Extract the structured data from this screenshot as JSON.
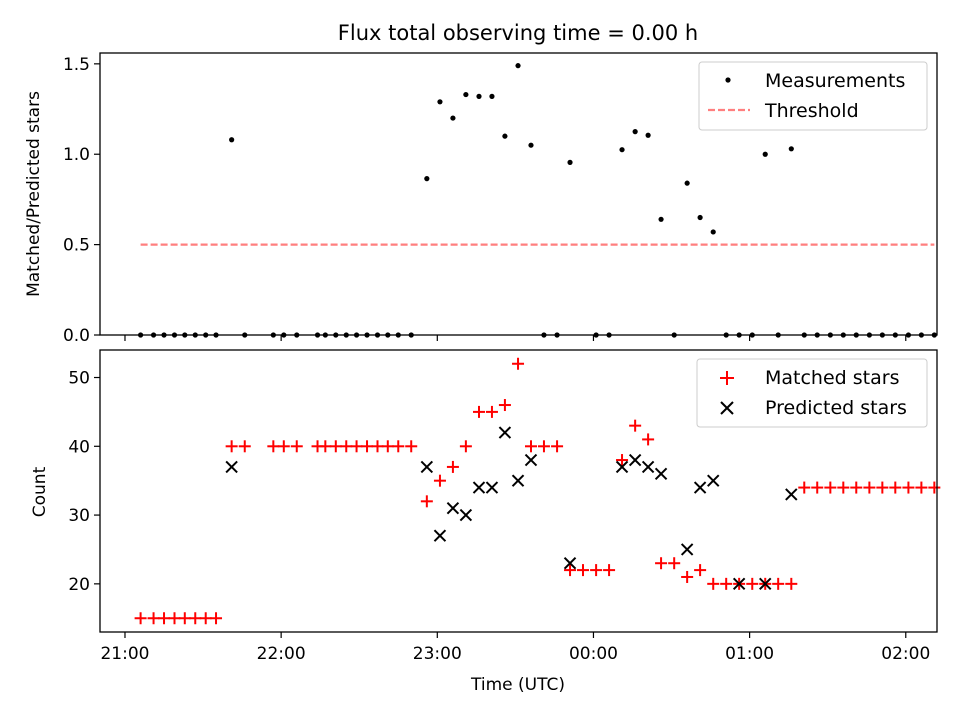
{
  "chart_data": [
    {
      "type": "scatter",
      "title": "Flux total observing time = 0.00 h",
      "ylabel": "Matched/Predicted stars",
      "xlabel": "",
      "xlim": [
        -0.16,
        5.2
      ],
      "ylim": [
        0,
        1.56
      ],
      "yticks": [
        0.0,
        0.5,
        1.0,
        1.5
      ],
      "ytick_labels": [
        "0.0",
        "0.5",
        "1.0",
        "1.5"
      ],
      "legend_position": "upper right",
      "series": [
        {
          "name": "Measurements",
          "marker": "dot",
          "color": "#000000",
          "x": [
            0.1,
            0.183,
            0.25,
            0.317,
            0.383,
            0.45,
            0.517,
            0.583,
            0.683,
            0.767,
            0.95,
            1.017,
            1.1,
            1.233,
            1.283,
            1.35,
            1.417,
            1.483,
            1.55,
            1.617,
            1.683,
            1.75,
            1.833,
            1.933,
            2.017,
            2.1,
            2.183,
            2.267,
            2.35,
            2.433,
            2.517,
            2.6,
            2.683,
            2.767,
            2.85,
            3.017,
            3.1,
            3.183,
            3.267,
            3.35,
            3.433,
            3.517,
            3.6,
            3.683,
            3.767,
            3.85,
            3.933,
            4.017,
            4.1,
            4.183,
            4.267,
            4.35,
            4.433,
            4.517,
            4.6,
            4.683,
            4.767,
            4.85,
            4.933,
            5.017,
            5.1,
            5.183
          ],
          "y": [
            0.0,
            0.0,
            0.0,
            0.0,
            0.0,
            0.0,
            0.0,
            0.0,
            1.08,
            0.0,
            0.0,
            0.0,
            0.0,
            0.0,
            0.0,
            0.0,
            0.0,
            0.0,
            0.0,
            0.0,
            0.0,
            0.0,
            0.0,
            0.865,
            1.29,
            1.2,
            1.33,
            1.32,
            1.32,
            1.1,
            1.49,
            1.05,
            0.0,
            0.0,
            0.955,
            0.0,
            0.0,
            1.025,
            1.125,
            1.105,
            0.64,
            0.0,
            0.84,
            0.65,
            0.57,
            0.0,
            0.0,
            0.0,
            1.0,
            0.0,
            1.03,
            0.0,
            0.0,
            0.0,
            0.0,
            0.0,
            0.0,
            0.0,
            0.0,
            0.0,
            0.0,
            0.0
          ]
        },
        {
          "name": "Threshold",
          "line_style": "dashed",
          "color": "#ff7f7f",
          "x": [
            0.1,
            5.183
          ],
          "y": [
            0.5,
            0.5
          ]
        }
      ]
    },
    {
      "type": "scatter",
      "title": "",
      "ylabel": "Count",
      "xlabel": "Time (UTC)",
      "xlim": [
        -0.16,
        5.2
      ],
      "ylim": [
        13,
        54
      ],
      "yticks": [
        20,
        30,
        40,
        50
      ],
      "ytick_labels": [
        "20",
        "30",
        "40",
        "50"
      ],
      "xticks": [
        0,
        1,
        2,
        3,
        4,
        5
      ],
      "xtick_labels": [
        "21:00",
        "22:00",
        "23:00",
        "00:00",
        "01:00",
        "02:00"
      ],
      "legend_position": "upper right",
      "series": [
        {
          "name": "Matched stars",
          "marker": "plus",
          "color": "#ff0000",
          "x": [
            0.1,
            0.183,
            0.25,
            0.317,
            0.383,
            0.45,
            0.517,
            0.583,
            0.683,
            0.767,
            0.95,
            1.017,
            1.1,
            1.233,
            1.283,
            1.35,
            1.417,
            1.483,
            1.55,
            1.617,
            1.683,
            1.75,
            1.833,
            1.933,
            2.017,
            2.1,
            2.183,
            2.267,
            2.35,
            2.433,
            2.517,
            2.6,
            2.683,
            2.767,
            2.85,
            2.933,
            3.017,
            3.1,
            3.183,
            3.267,
            3.35,
            3.433,
            3.517,
            3.6,
            3.683,
            3.767,
            3.85,
            3.933,
            4.017,
            4.1,
            4.183,
            4.267,
            4.35,
            4.433,
            4.517,
            4.6,
            4.683,
            4.767,
            4.85,
            4.933,
            5.017,
            5.1,
            5.183
          ],
          "y": [
            15,
            15,
            15,
            15,
            15,
            15,
            15,
            15,
            40,
            40,
            40,
            40,
            40,
            40,
            40,
            40,
            40,
            40,
            40,
            40,
            40,
            40,
            40,
            32,
            35,
            37,
            40,
            45,
            45,
            46,
            52,
            40,
            40,
            40,
            22,
            22,
            22,
            22,
            38,
            43,
            41,
            23,
            23,
            21,
            22,
            20,
            20,
            20,
            20,
            20,
            20,
            20,
            34,
            34,
            34,
            34,
            34,
            34,
            34,
            34,
            34,
            34,
            34
          ]
        },
        {
          "name": "Predicted stars",
          "marker": "x",
          "color": "#000000",
          "x": [
            0.683,
            1.933,
            2.017,
            2.1,
            2.183,
            2.267,
            2.35,
            2.433,
            2.517,
            2.6,
            2.85,
            3.183,
            3.267,
            3.35,
            3.433,
            3.6,
            3.683,
            3.767,
            3.933,
            4.1,
            4.267
          ],
          "y": [
            37,
            37,
            27,
            31,
            30,
            34,
            34,
            42,
            35,
            38,
            23,
            37,
            38,
            37,
            36,
            25,
            34,
            35,
            20,
            20,
            33
          ]
        }
      ]
    }
  ]
}
